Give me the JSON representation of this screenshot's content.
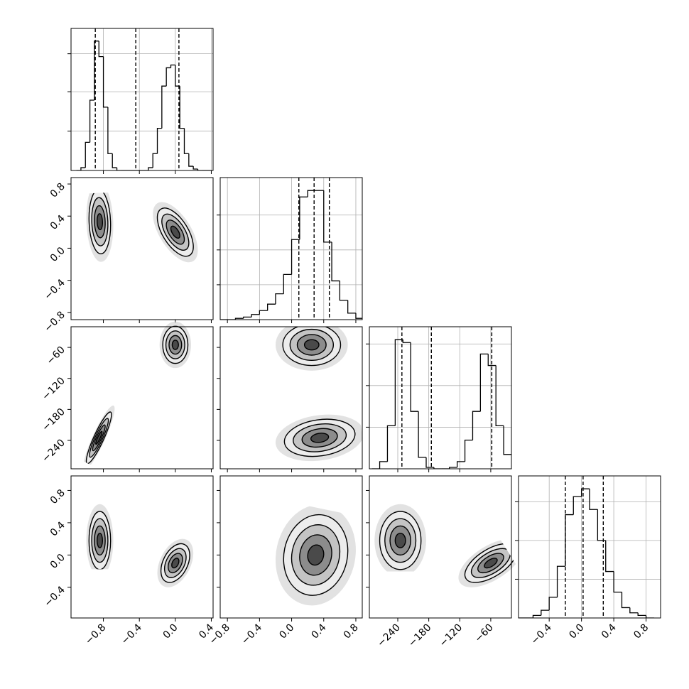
{
  "chart_data": {
    "type": "corner",
    "levels": [
      0.5,
      1,
      1.5,
      2
    ],
    "params": [
      {
        "lim": [
          -1.16,
          0.42
        ],
        "ticks": [
          {
            "value": -0.8,
            "label": "−0.8"
          },
          {
            "value": -0.4,
            "label": "−0.4"
          },
          {
            "value": 0.0,
            "label": "0.0"
          },
          {
            "value": 0.4,
            "label": "0.4"
          }
        ]
      },
      {
        "lim": [
          -0.89,
          0.88
        ],
        "ticks": [
          {
            "value": -0.8,
            "label": "−0.8"
          },
          {
            "value": -0.4,
            "label": "−0.4"
          },
          {
            "value": 0.0,
            "label": "0.0"
          },
          {
            "value": 0.4,
            "label": "0.4"
          },
          {
            "value": 0.8,
            "label": "0.8"
          }
        ]
      },
      {
        "lim": [
          -295,
          -20
        ],
        "ticks": [
          {
            "value": -240,
            "label": "−240"
          },
          {
            "value": -180,
            "label": "−180"
          },
          {
            "value": -120,
            "label": "−120"
          },
          {
            "value": -60,
            "label": "−60"
          }
        ]
      },
      {
        "lim": [
          -0.78,
          0.98
        ],
        "ticks": [
          {
            "value": -0.4,
            "label": "−0.4"
          },
          {
            "value": 0.0,
            "label": "0.0"
          },
          {
            "value": 0.4,
            "label": "0.4"
          },
          {
            "value": 0.8,
            "label": "0.8"
          }
        ]
      }
    ],
    "histograms": [
      {
        "bins": [
          -1.1,
          -1.05,
          -1.0,
          -0.95,
          -0.9,
          -0.85,
          -0.8,
          -0.75,
          -0.7,
          -0.65,
          -0.6,
          -0.55,
          -0.5,
          -0.45,
          -0.4,
          -0.35,
          -0.3,
          -0.25,
          -0.2,
          -0.15,
          -0.1,
          -0.05,
          0.0,
          0.05,
          0.1,
          0.15,
          0.2,
          0.25,
          0.3,
          0.35,
          0.4
        ],
        "counts": [
          0,
          2,
          20,
          50,
          92,
          81,
          45,
          12,
          2,
          0,
          0,
          0,
          0,
          0,
          0,
          0,
          2,
          12,
          30,
          60,
          73,
          75,
          60,
          30,
          12,
          3,
          1,
          0,
          0,
          0
        ],
        "ylim": [
          0,
          101
        ],
        "grid": [
          28,
          56,
          83
        ],
        "quantiles": [
          -0.89,
          -0.44,
          0.04
        ]
      },
      {
        "bins": [
          -0.9,
          -0.8,
          -0.7,
          -0.6,
          -0.5,
          -0.4,
          -0.3,
          -0.2,
          -0.1,
          0.0,
          0.1,
          0.2,
          0.3,
          0.4,
          0.5,
          0.6,
          0.7,
          0.8,
          0.9
        ],
        "counts": [
          0,
          0,
          1,
          2,
          4,
          7,
          12,
          20,
          35,
          62,
          95,
          100,
          100,
          60,
          30,
          15,
          5,
          1
        ],
        "ylim": [
          0,
          110
        ],
        "grid": [
          27,
          54,
          81
        ],
        "quantiles": [
          0.09,
          0.28,
          0.47
        ]
      },
      {
        "bins": [
          -290,
          -275,
          -260,
          -245,
          -230,
          -215,
          -200,
          -185,
          -170,
          -155,
          -140,
          -125,
          -110,
          -95,
          -80,
          -65,
          -50,
          -35,
          -20
        ],
        "counts": [
          0,
          5,
          30,
          90,
          88,
          40,
          8,
          1,
          0,
          0,
          1,
          5,
          20,
          40,
          80,
          72,
          30,
          10
        ],
        "ylim": [
          0,
          99
        ],
        "grid": [
          29,
          58,
          87
        ],
        "quantiles": [
          -232,
          -175,
          -58
        ]
      },
      {
        "bins": [
          -0.8,
          -0.7,
          -0.6,
          -0.5,
          -0.4,
          -0.3,
          -0.2,
          -0.1,
          0.0,
          0.1,
          0.2,
          0.3,
          0.4,
          0.5,
          0.6,
          0.7,
          0.8,
          0.9
        ],
        "counts": [
          0,
          0,
          1,
          3,
          8,
          20,
          40,
          47,
          50,
          42,
          30,
          18,
          10,
          4,
          2,
          1,
          0
        ],
        "ylim": [
          0,
          55
        ],
        "grid": [
          15,
          30,
          45
        ],
        "quantiles": [
          -0.2,
          0.02,
          0.27
        ]
      }
    ],
    "pairs": [
      [
        {
          "modes": [
            {
              "center": [
                -0.84,
                0.33
              ],
              "sx": 0.06,
              "sy": 0.2,
              "rho": -0.1
            },
            {
              "center": [
                0.0,
                0.2
              ],
              "sx": 0.1,
              "sy": 0.15,
              "rho": -0.6
            }
          ]
        }
      ],
      [
        {
          "modes": [
            {
              "center": [
                -0.85,
                -235
              ],
              "sx": 0.07,
              "sy": 25,
              "rho": 0.9
            },
            {
              "center": [
                0.0,
                -55
              ],
              "sx": 0.07,
              "sy": 18,
              "rho": 0.0
            }
          ]
        },
        {
          "modes": [
            {
              "center": [
                0.25,
                -55
              ],
              "sx": 0.18,
              "sy": 20,
              "rho": 0.0
            },
            {
              "center": [
                0.35,
                -235
              ],
              "sx": 0.22,
              "sy": 18,
              "rho": 0.2
            }
          ]
        }
      ],
      [
        {
          "modes": [
            {
              "center": [
                -0.84,
                0.18
              ],
              "sx": 0.06,
              "sy": 0.18,
              "rho": 0.0
            },
            {
              "center": [
                0.0,
                -0.1
              ],
              "sx": 0.08,
              "sy": 0.12,
              "rho": 0.4
            }
          ]
        },
        {
          "modes": [
            {
              "center": [
                0.3,
                0.0
              ],
              "sx": 0.2,
              "sy": 0.25,
              "rho": 0.1
            }
          ]
        },
        {
          "modes": [
            {
              "center": [
                -235,
                0.18
              ],
              "sx": 20,
              "sy": 0.18,
              "rho": 0.0
            },
            {
              "center": [
                -60,
                -0.1
              ],
              "sx": 25,
              "sy": 0.12,
              "rho": 0.6
            }
          ]
        }
      ]
    ]
  }
}
